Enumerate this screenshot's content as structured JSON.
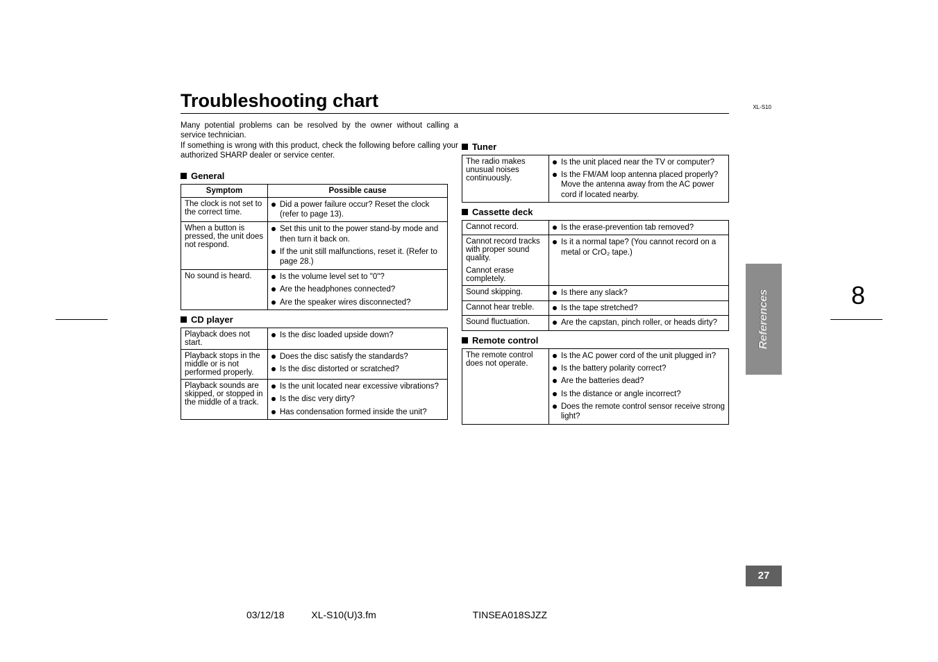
{
  "model": "XL-S10",
  "title": "Troubleshooting chart",
  "intro1": "Many potential problems can be resolved by the owner without calling a service technician.",
  "intro2": "If something is wrong with this product, check the following before calling your authorized SHARP dealer or service center.",
  "colhead": {
    "sym": "Symptom",
    "cause": "Possible cause"
  },
  "sections": {
    "general": "General",
    "cd": "CD player",
    "tuner": "Tuner",
    "cassette": "Cassette deck",
    "remote": "Remote control"
  },
  "general": [
    {
      "sym": "The clock is not set to the correct time.",
      "cause": [
        "Did a power failure occur? Reset the clock (refer to page 13)."
      ]
    },
    {
      "sym": "When a button is pressed, the unit does not respond.",
      "cause": [
        "Set this unit to the power stand-by mode and then turn it back on.",
        "If the unit still malfunctions, reset it. (Refer to page 28.)"
      ]
    },
    {
      "sym": "No sound is heard.",
      "cause": [
        "Is the volume level set to \"0\"?",
        "Are the headphones connected?",
        "Are the speaker wires disconnected?"
      ]
    }
  ],
  "cd": [
    {
      "sym": "Playback does not start.",
      "cause": [
        "Is the disc loaded upside down?"
      ]
    },
    {
      "sym": "Playback stops in the middle or is not performed properly.",
      "cause": [
        "Does the disc satisfy the standards?",
        "Is the disc distorted or scratched?"
      ]
    },
    {
      "sym": "Playback sounds are skipped, or stopped in the middle of a track.",
      "cause": [
        "Is the unit located near excessive vibrations?",
        "Is the disc very dirty?",
        "Has condensation formed inside the unit?"
      ]
    }
  ],
  "tuner": [
    {
      "sym": "The radio makes unusual noises continuously.",
      "cause": [
        "Is the unit placed near the TV or computer?",
        "Is the FM/AM loop antenna placed properly? Move the antenna away from the AC power cord if located nearby."
      ]
    }
  ],
  "cassette": [
    {
      "sym": "Cannot record.",
      "cause": [
        "Is the erase-prevention tab removed?"
      ]
    },
    {
      "sym": "Cannot record tracks with proper sound quality.",
      "cause": [
        "Is it a normal tape? (You cannot record on a metal or CrO₂ tape.)"
      ]
    },
    {
      "sym": "Cannot erase completely.",
      "cause": []
    },
    {
      "sym": "Sound skipping.",
      "cause": [
        "Is there any slack?"
      ]
    },
    {
      "sym": "Cannot hear treble.",
      "cause": [
        "Is the tape stretched?"
      ]
    },
    {
      "sym": "Sound fluctuation.",
      "cause": [
        "Are the capstan, pinch roller, or heads dirty?"
      ]
    }
  ],
  "remote": [
    {
      "sym": "The remote control does not operate.",
      "cause": [
        "Is the AC power cord of the unit plugged in?",
        "Is the battery polarity correct?",
        "Are the batteries dead?",
        "Is the distance or angle incorrect?",
        "Does the remote control sensor receive strong light?"
      ]
    }
  ],
  "sideTab": "References",
  "pageNum": "27",
  "bigPage": "8",
  "footer": {
    "date": "03/12/18",
    "file": "XL-S10(U)3.fm",
    "code": "TINSEA018SJZZ"
  }
}
